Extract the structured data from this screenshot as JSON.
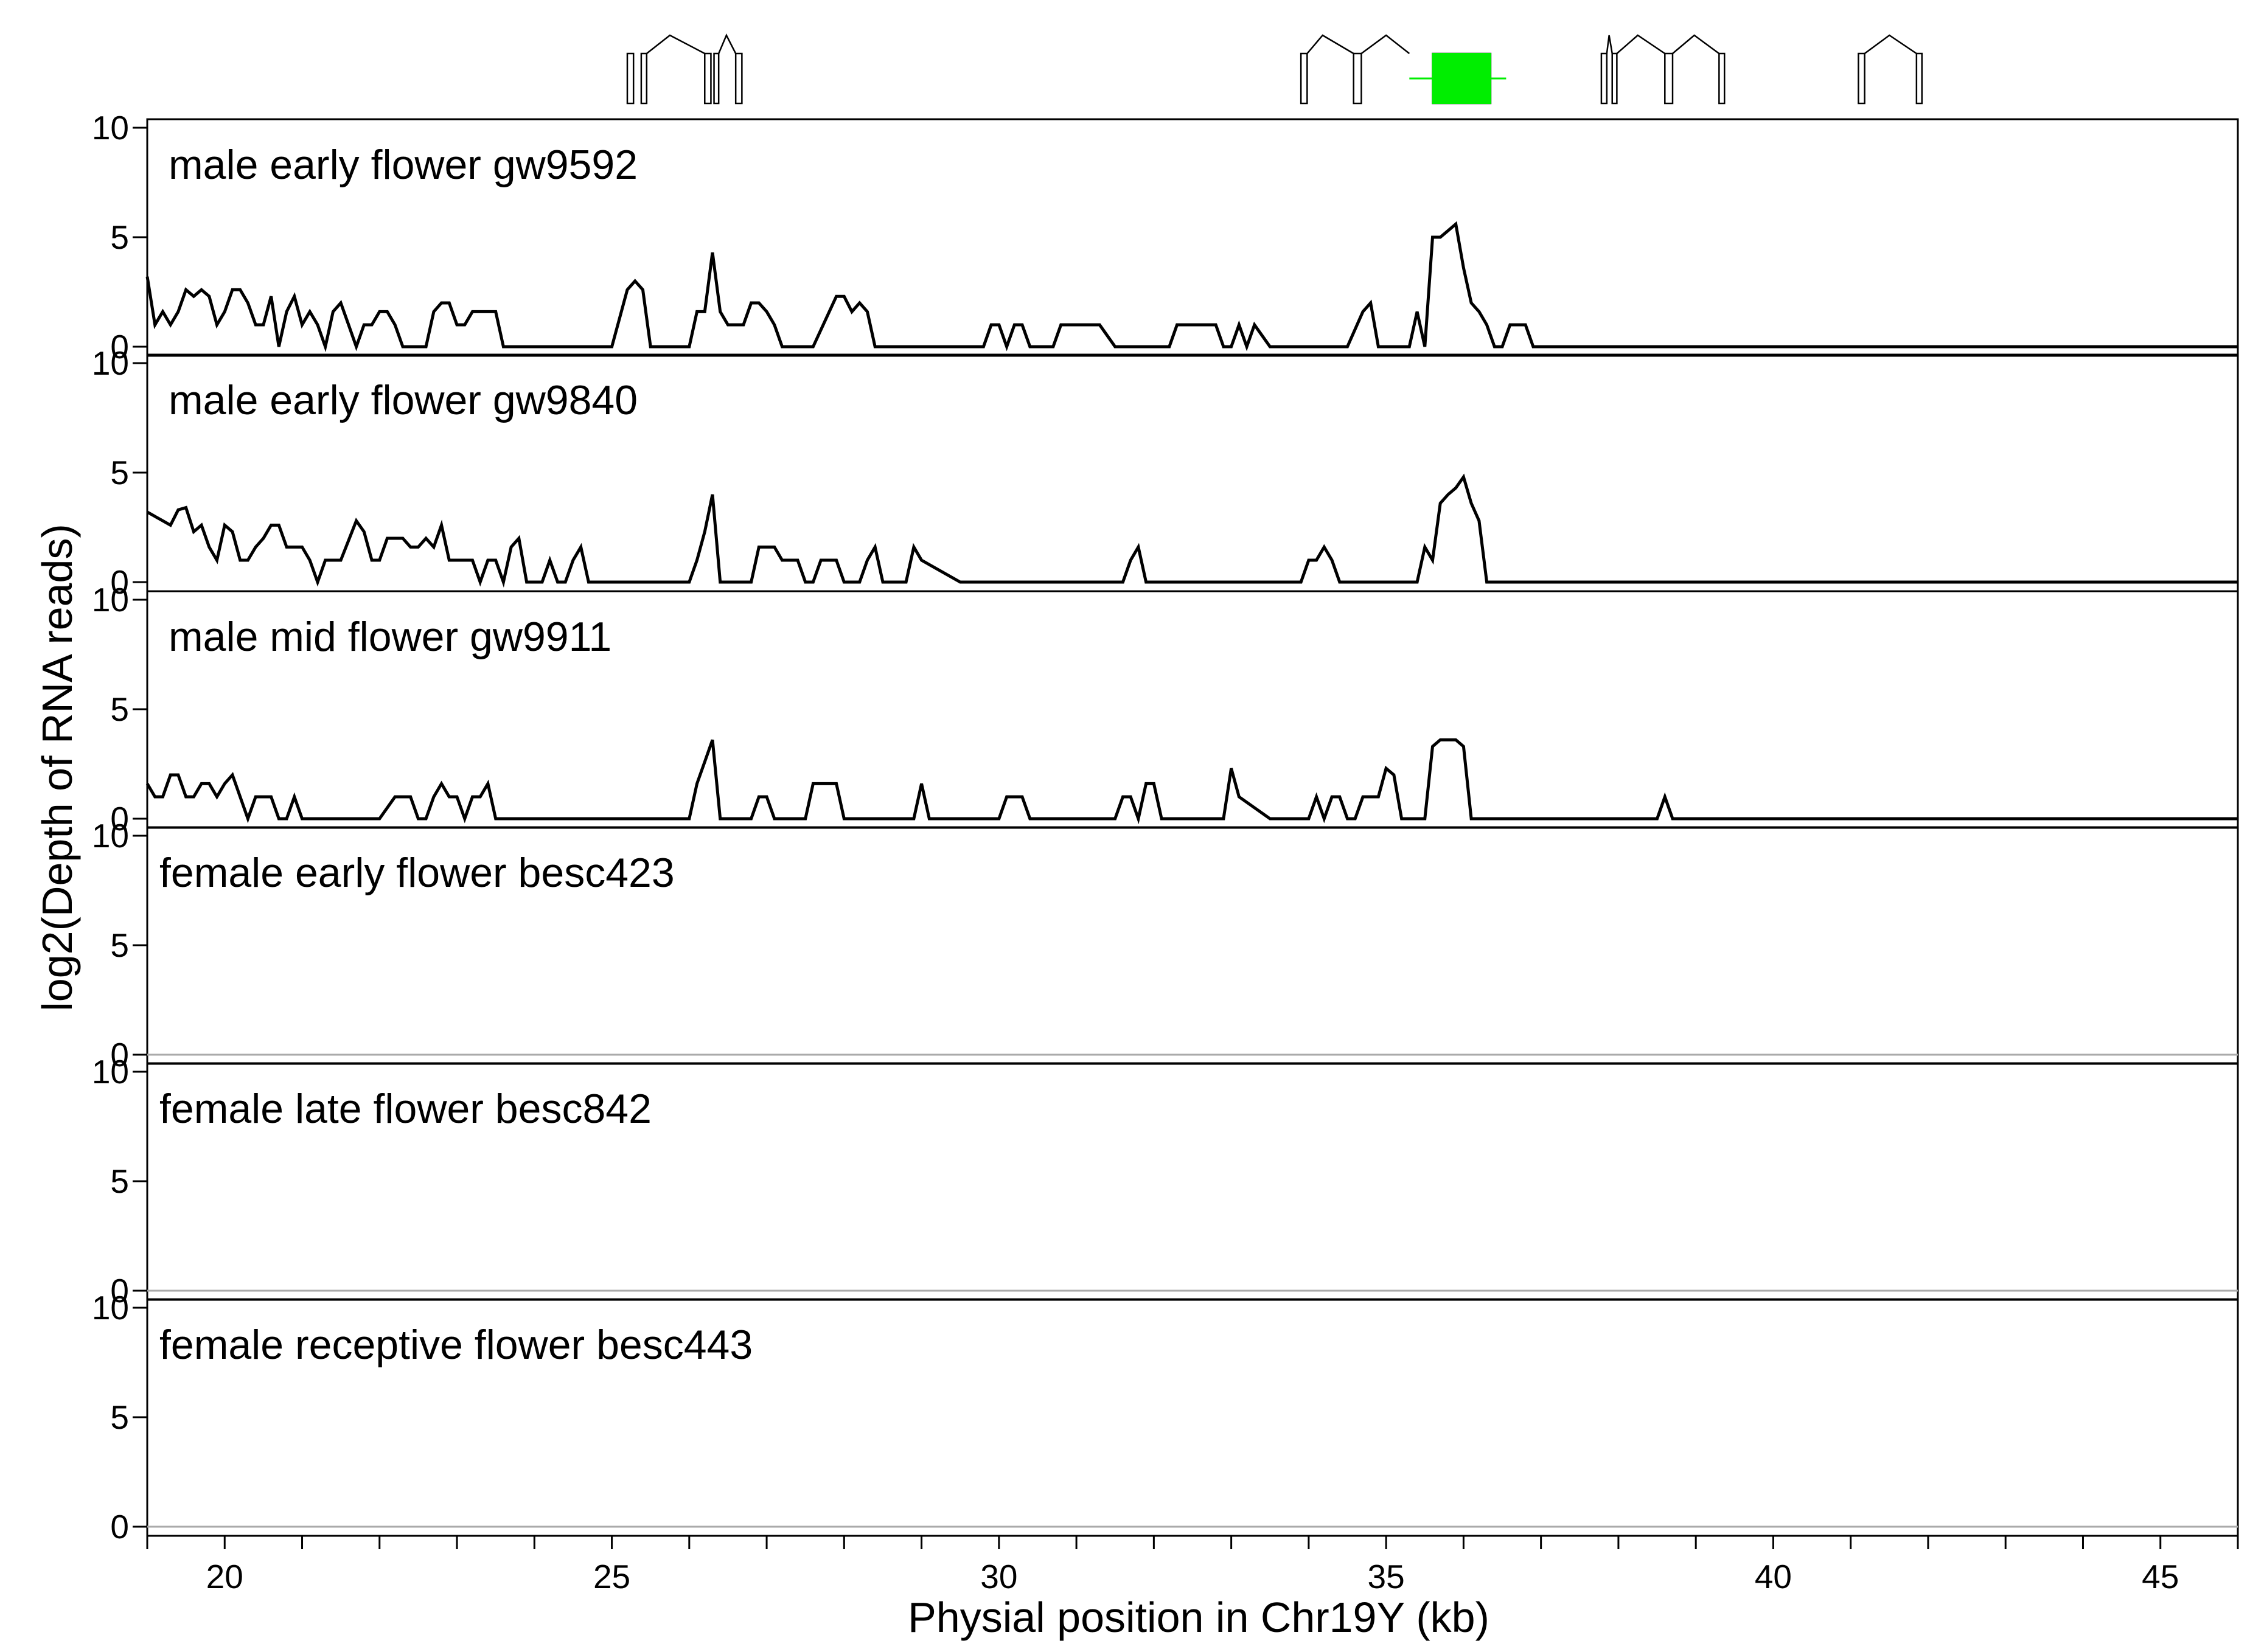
{
  "chart_data": {
    "type": "line",
    "xlabel": "Physial position in Chr19Y (kb)",
    "ylabel": "log2(Depth of RNA reads)",
    "xlim": [
      19,
      46
    ],
    "x_ticks": [
      20,
      25,
      30,
      35,
      40,
      45
    ],
    "x_tick_labels": [
      "20",
      "25",
      "30",
      "35",
      "40",
      "45"
    ],
    "ylim": [
      0,
      10
    ],
    "y_ticks": [
      0,
      5,
      10
    ],
    "y_tick_labels": [
      "0",
      "5",
      "10"
    ],
    "gene_model": {
      "genes": [
        {
          "exons": [
            [
              25.2,
              25.28
            ],
            [
              25.38,
              25.45
            ],
            [
              26.2,
              26.28
            ],
            [
              26.32,
              26.38
            ],
            [
              26.6,
              26.68
            ]
          ],
          "introns": [
            [
              25.45,
              25.75,
              26.2
            ],
            [
              26.38,
              26.48,
              26.6
            ]
          ]
        },
        {
          "exons": [
            [
              33.9,
              33.98
            ],
            [
              34.58,
              34.68
            ],
            [
              35.6,
              36.35
            ]
          ],
          "introns": [
            [
              33.98,
              34.18,
              34.58
            ],
            [
              34.68,
              35.0,
              35.3
            ]
          ]
        },
        {
          "exons": [
            [
              37.78,
              37.85
            ],
            [
              37.92,
              37.98
            ],
            [
              38.6,
              38.7
            ],
            [
              39.3,
              39.37
            ]
          ],
          "introns": [
            [
              37.85,
              37.88,
              37.92
            ],
            [
              37.98,
              38.25,
              38.6
            ],
            [
              38.7,
              38.98,
              39.3
            ]
          ]
        },
        {
          "exons": [
            [
              41.1,
              41.18
            ],
            [
              41.85,
              41.92
            ]
          ],
          "introns": [
            [
              41.18,
              41.5,
              41.85
            ]
          ]
        }
      ],
      "highlight": {
        "start": 35.6,
        "end": 36.35,
        "whisker": [
          35.3,
          36.55
        ],
        "color": "#00ee00"
      }
    },
    "series": [
      {
        "name": "male early flower gw9592",
        "x": [
          19.0,
          19.1,
          19.2,
          19.3,
          19.4,
          19.5,
          19.6,
          19.7,
          19.8,
          19.9,
          20.0,
          20.1,
          20.2,
          20.3,
          20.4,
          20.5,
          20.6,
          20.7,
          20.8,
          20.9,
          21.0,
          21.1,
          21.2,
          21.3,
          21.4,
          21.5,
          21.6,
          21.7,
          21.8,
          21.9,
          22.0,
          22.1,
          22.2,
          22.3,
          22.4,
          22.5,
          22.6,
          22.7,
          22.8,
          22.9,
          23.0,
          23.1,
          23.2,
          23.3,
          23.4,
          23.5,
          23.6,
          24.0,
          24.5,
          25.0,
          25.2,
          25.3,
          25.4,
          25.5,
          26.0,
          26.1,
          26.2,
          26.3,
          26.4,
          26.5,
          26.6,
          26.7,
          26.8,
          26.9,
          27.0,
          27.1,
          27.2,
          27.3,
          27.6,
          27.9,
          28.0,
          28.1,
          28.2,
          28.3,
          28.4,
          28.6,
          29.0,
          29.5,
          29.8,
          29.9,
          30.0,
          30.1,
          30.2,
          30.3,
          30.4,
          30.6,
          30.7,
          30.8,
          30.9,
          31.1,
          31.3,
          31.5,
          32.0,
          32.2,
          32.3,
          32.5,
          32.7,
          32.8,
          32.9,
          33.0,
          33.1,
          33.2,
          33.3,
          33.5,
          34.0,
          34.5,
          34.7,
          34.8,
          34.9,
          35.0,
          35.3,
          35.4,
          35.5,
          35.6,
          35.7,
          35.8,
          35.9,
          36.0,
          36.1,
          36.2,
          36.3,
          36.4,
          36.5,
          36.6,
          36.7,
          36.8,
          36.9,
          37.0,
          38.0,
          40.0,
          42.0,
          44.0,
          46.0
        ],
        "y": [
          3.2,
          1.0,
          1.6,
          1.0,
          1.6,
          2.6,
          2.3,
          2.6,
          2.3,
          1.0,
          1.6,
          2.6,
          2.6,
          2.0,
          1.0,
          1.0,
          2.3,
          0.0,
          1.6,
          2.3,
          1.0,
          1.6,
          1.0,
          0.0,
          1.6,
          2.0,
          1.0,
          0.0,
          1.0,
          1.0,
          1.6,
          1.6,
          1.0,
          0.0,
          0.0,
          0.0,
          0.0,
          1.6,
          2.0,
          2.0,
          1.0,
          1.0,
          1.6,
          1.6,
          1.6,
          1.6,
          0.0,
          0.0,
          0.0,
          0.0,
          2.6,
          3.0,
          2.6,
          0.0,
          0.0,
          1.6,
          1.6,
          4.3,
          1.6,
          1.0,
          1.0,
          1.0,
          2.0,
          2.0,
          1.6,
          1.0,
          0.0,
          0.0,
          0.0,
          2.3,
          2.3,
          1.6,
          2.0,
          1.6,
          0.0,
          0.0,
          0.0,
          0.0,
          0.0,
          1.0,
          1.0,
          0.0,
          1.0,
          1.0,
          0.0,
          0.0,
          0.0,
          1.0,
          1.0,
          1.0,
          1.0,
          0.0,
          0.0,
          0.0,
          1.0,
          1.0,
          1.0,
          1.0,
          0.0,
          0.0,
          1.0,
          0.0,
          1.0,
          0.0,
          0.0,
          0.0,
          1.6,
          2.0,
          0.0,
          0.0,
          0.0,
          1.6,
          0.0,
          5.0,
          5.0,
          5.3,
          5.6,
          3.6,
          2.0,
          1.6,
          1.0,
          0.0,
          0.0,
          1.0,
          1.0,
          1.0,
          0.0,
          0.0,
          0.0,
          0.0,
          0.0,
          0.0,
          0.0
        ]
      },
      {
        "name": "male early flower gw9840",
        "x": [
          19.0,
          19.1,
          19.2,
          19.3,
          19.4,
          19.5,
          19.6,
          19.7,
          19.8,
          19.9,
          20.0,
          20.1,
          20.2,
          20.3,
          20.4,
          20.5,
          20.6,
          20.7,
          20.8,
          20.9,
          21.0,
          21.1,
          21.2,
          21.3,
          21.4,
          21.5,
          21.6,
          21.7,
          21.8,
          21.9,
          22.0,
          22.1,
          22.2,
          22.3,
          22.4,
          22.5,
          22.6,
          22.7,
          22.8,
          22.9,
          23.0,
          23.1,
          23.2,
          23.3,
          23.4,
          23.5,
          23.6,
          23.7,
          23.8,
          23.9,
          24.0,
          24.1,
          24.2,
          24.3,
          24.4,
          24.5,
          24.6,
          24.7,
          25.0,
          25.5,
          26.0,
          26.1,
          26.2,
          26.3,
          26.4,
          26.5,
          26.6,
          26.8,
          26.9,
          27.0,
          27.1,
          27.2,
          27.3,
          27.4,
          27.5,
          27.6,
          27.7,
          27.8,
          27.9,
          28.0,
          28.1,
          28.2,
          28.3,
          28.4,
          28.5,
          28.6,
          28.7,
          28.8,
          28.9,
          29.0,
          29.5,
          30.0,
          31.0,
          31.5,
          31.6,
          31.7,
          31.8,
          31.9,
          32.5,
          33.0,
          33.5,
          33.9,
          34.0,
          34.1,
          34.2,
          34.3,
          34.4,
          34.5,
          35.0,
          35.3,
          35.4,
          35.5,
          35.6,
          35.7,
          35.8,
          35.9,
          36.0,
          36.1,
          36.2,
          36.3,
          38.0,
          40.0,
          42.0,
          44.0,
          46.0
        ],
        "y": [
          3.2,
          3.0,
          2.8,
          2.6,
          3.3,
          3.4,
          2.3,
          2.6,
          1.6,
          1.0,
          2.6,
          2.3,
          1.0,
          1.0,
          1.6,
          2.0,
          2.6,
          2.6,
          1.6,
          1.6,
          1.6,
          1.0,
          0.0,
          1.0,
          1.0,
          1.0,
          1.9,
          2.8,
          2.3,
          1.0,
          1.0,
          2.0,
          2.0,
          2.0,
          1.6,
          1.6,
          2.0,
          1.6,
          2.6,
          1.0,
          1.0,
          1.0,
          1.0,
          0.0,
          1.0,
          1.0,
          0.0,
          1.6,
          2.0,
          0.0,
          0.0,
          0.0,
          1.0,
          0.0,
          0.0,
          1.0,
          1.6,
          0.0,
          0.0,
          0.0,
          0.0,
          1.0,
          2.3,
          4.0,
          0.0,
          0.0,
          0.0,
          0.0,
          1.6,
          1.6,
          1.6,
          1.0,
          1.0,
          1.0,
          0.0,
          0.0,
          1.0,
          1.0,
          1.0,
          0.0,
          0.0,
          0.0,
          1.0,
          1.6,
          0.0,
          0.0,
          0.0,
          0.0,
          1.6,
          1.0,
          0.0,
          0.0,
          0.0,
          0.0,
          0.0,
          1.0,
          1.6,
          0.0,
          0.0,
          0.0,
          0.0,
          0.0,
          1.0,
          1.0,
          1.6,
          1.0,
          0.0,
          0.0,
          0.0,
          0.0,
          0.0,
          1.6,
          1.0,
          3.6,
          4.0,
          4.3,
          4.8,
          3.6,
          2.8,
          0.0,
          0.0,
          0.0,
          0.0,
          0.0,
          0.0
        ]
      },
      {
        "name": "male mid flower gw9911",
        "x": [
          19.0,
          19.1,
          19.2,
          19.3,
          19.4,
          19.5,
          19.6,
          19.7,
          19.8,
          19.9,
          20.0,
          20.1,
          20.2,
          20.3,
          20.4,
          20.5,
          20.6,
          20.7,
          20.8,
          20.9,
          21.0,
          21.1,
          22.0,
          22.2,
          22.4,
          22.5,
          22.6,
          22.7,
          22.8,
          22.9,
          23.0,
          23.1,
          23.2,
          23.3,
          23.4,
          23.5,
          23.6,
          24.0,
          25.0,
          26.0,
          26.1,
          26.2,
          26.3,
          26.4,
          26.5,
          26.6,
          26.7,
          26.8,
          26.9,
          27.0,
          27.1,
          27.5,
          27.6,
          27.7,
          27.9,
          28.0,
          28.5,
          28.9,
          29.0,
          29.1,
          29.5,
          30.0,
          30.1,
          30.2,
          30.3,
          30.4,
          31.0,
          31.5,
          31.6,
          31.7,
          31.8,
          31.9,
          32.0,
          32.1,
          32.5,
          32.9,
          33.0,
          33.1,
          33.5,
          34.0,
          34.1,
          34.2,
          34.3,
          34.4,
          34.5,
          34.6,
          34.7,
          34.8,
          34.9,
          35.0,
          35.1,
          35.2,
          35.3,
          35.4,
          35.5,
          35.6,
          35.7,
          35.8,
          35.9,
          36.0,
          36.1,
          37.0,
          38.0,
          38.5,
          38.6,
          38.7,
          39.0,
          42.0,
          44.0,
          46.0
        ],
        "y": [
          1.6,
          1.0,
          1.0,
          2.0,
          2.0,
          1.0,
          1.0,
          1.6,
          1.6,
          1.0,
          1.6,
          2.0,
          1.0,
          0.0,
          1.0,
          1.0,
          1.0,
          0.0,
          0.0,
          1.0,
          0.0,
          0.0,
          0.0,
          1.0,
          1.0,
          0.0,
          0.0,
          1.0,
          1.6,
          1.0,
          1.0,
          0.0,
          1.0,
          1.0,
          1.6,
          0.0,
          0.0,
          0.0,
          0.0,
          0.0,
          1.6,
          2.6,
          3.6,
          0.0,
          0.0,
          0.0,
          0.0,
          0.0,
          1.0,
          1.0,
          0.0,
          0.0,
          1.6,
          1.6,
          1.6,
          0.0,
          0.0,
          0.0,
          1.6,
          0.0,
          0.0,
          0.0,
          1.0,
          1.0,
          1.0,
          0.0,
          0.0,
          0.0,
          1.0,
          1.0,
          0.0,
          1.6,
          1.6,
          0.0,
          0.0,
          0.0,
          2.3,
          1.0,
          0.0,
          0.0,
          1.0,
          0.0,
          1.0,
          1.0,
          0.0,
          0.0,
          1.0,
          1.0,
          1.0,
          2.3,
          2.0,
          0.0,
          0.0,
          0.0,
          0.0,
          3.3,
          3.6,
          3.6,
          3.6,
          3.3,
          0.0,
          0.0,
          0.0,
          0.0,
          1.0,
          0.0,
          0.0,
          0.0,
          0.0,
          0.0
        ]
      },
      {
        "name": "female early flower besc423",
        "x": [],
        "y": []
      },
      {
        "name": "female late flower besc842",
        "x": [],
        "y": []
      },
      {
        "name": "female receptive flower besc443",
        "x": [],
        "y": []
      }
    ],
    "colors": {
      "line": "#000000",
      "frame": "#000000",
      "baseline_empty": "#aaaaaa",
      "highlight_gene": "#00ee00"
    },
    "grid": false,
    "legend": "none"
  }
}
